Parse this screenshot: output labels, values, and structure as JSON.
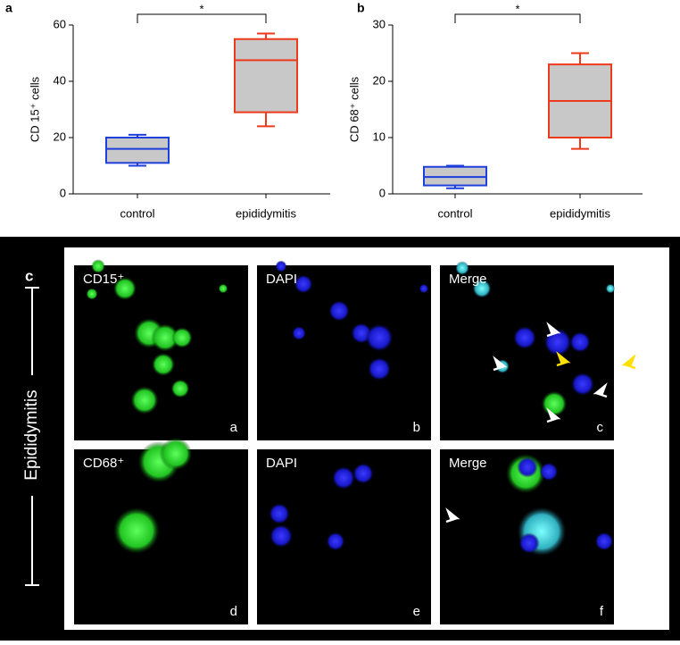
{
  "chart_data": [
    {
      "type": "box",
      "panel": "a",
      "ylabel": "CD 15⁺ cells",
      "categories": [
        "control",
        "epididymitis"
      ],
      "boxes": [
        {
          "min": 10,
          "q1": 11,
          "median": 16,
          "q3": 20,
          "max": 21,
          "color": "#1f3fdc"
        },
        {
          "min": 24,
          "q1": 29,
          "median": 47.5,
          "q3": 55,
          "max": 57,
          "color": "#ee3a1c"
        }
      ],
      "box_fill": "#c8c8c8",
      "ylim": [
        0,
        60
      ],
      "yticks": [
        0,
        20,
        40,
        60
      ],
      "significance": "*"
    },
    {
      "type": "box",
      "panel": "b",
      "ylabel": "CD 68⁺ cells",
      "categories": [
        "control",
        "epididymitis"
      ],
      "boxes": [
        {
          "min": 1,
          "q1": 1.5,
          "median": 3,
          "q3": 4.8,
          "max": 5,
          "color": "#1f3fdc"
        },
        {
          "min": 8,
          "q1": 10,
          "median": 16.5,
          "q3": 23,
          "max": 25,
          "color": "#ee3a1c"
        }
      ],
      "box_fill": "#c8c8c8",
      "ylim": [
        0,
        30
      ],
      "yticks": [
        0,
        10,
        20,
        30
      ],
      "significance": "*"
    }
  ],
  "panel_c": {
    "label": "c",
    "row_label": "Epididymitis",
    "panels": [
      {
        "title": "CD15⁺",
        "letter": "a"
      },
      {
        "title": "DAPI",
        "letter": "b"
      },
      {
        "title": "Merge",
        "letter": "c"
      },
      {
        "title": "CD68⁺",
        "letter": "d"
      },
      {
        "title": "DAPI",
        "letter": "e"
      },
      {
        "title": "Merge",
        "letter": "f"
      }
    ]
  }
}
